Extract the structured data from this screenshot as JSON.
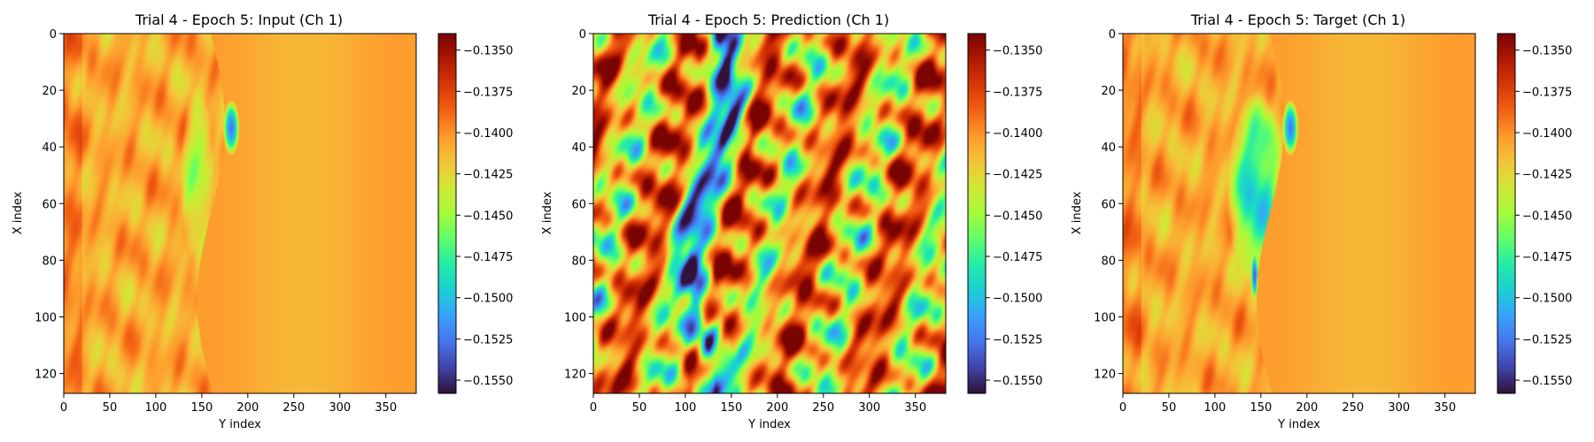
{
  "colormap": {
    "name": "turbo",
    "stops": [
      "#30123b",
      "#4145ab",
      "#4675ed",
      "#39a2fc",
      "#1bcfd4",
      "#24eca6",
      "#61fc6c",
      "#a4fc3b",
      "#d1e834",
      "#f3c63a",
      "#fe9b2d",
      "#f36315",
      "#d93806",
      "#b11901",
      "#7a0402"
    ]
  },
  "panels": [
    {
      "title": "Trial 4 - Epoch 5: Input (Ch 1)",
      "xlabel": "Y index",
      "ylabel": "X index",
      "xticks": [
        "0",
        "50",
        "100",
        "150",
        "200",
        "250",
        "300",
        "350"
      ],
      "yticks": [
        "0",
        "20",
        "40",
        "60",
        "80",
        "100",
        "120"
      ],
      "cbar_ticks": [
        "−0.1350",
        "−0.1375",
        "−0.1400",
        "−0.1425",
        "−0.1450",
        "−0.1475",
        "−0.1500",
        "−0.1525",
        "−0.1550"
      ]
    },
    {
      "title": "Trial 4 - Epoch 5: Prediction (Ch 1)",
      "xlabel": "Y index",
      "ylabel": "X index",
      "xticks": [
        "0",
        "50",
        "100",
        "150",
        "200",
        "250",
        "300",
        "350"
      ],
      "yticks": [
        "0",
        "20",
        "40",
        "60",
        "80",
        "100",
        "120"
      ],
      "cbar_ticks": [
        "−0.1350",
        "−0.1375",
        "−0.1400",
        "−0.1425",
        "−0.1450",
        "−0.1475",
        "−0.1500",
        "−0.1525",
        "−0.1550"
      ]
    },
    {
      "title": "Trial 4 - Epoch 5: Target (Ch 1)",
      "xlabel": "Y index",
      "ylabel": "X index",
      "xticks": [
        "0",
        "50",
        "100",
        "150",
        "200",
        "250",
        "300",
        "350"
      ],
      "yticks": [
        "0",
        "20",
        "40",
        "60",
        "80",
        "100",
        "120"
      ],
      "cbar_ticks": [
        "−0.1350",
        "−0.1375",
        "−0.1400",
        "−0.1425",
        "−0.1450",
        "−0.1475",
        "−0.1500",
        "−0.1525",
        "−0.1550"
      ]
    }
  ],
  "chart_data": [
    {
      "type": "heatmap",
      "title": "Trial 4 - Epoch 5: Input (Ch 1)",
      "xlabel": "Y index",
      "ylabel": "X index",
      "xlim": [
        0,
        383
      ],
      "ylim": [
        127,
        0
      ],
      "colorbar": {
        "min": -0.1558,
        "max": -0.134,
        "ticks": [
          -0.135,
          -0.1375,
          -0.14,
          -0.1425,
          -0.145,
          -0.1475,
          -0.15,
          -0.1525,
          -0.155
        ]
      },
      "field": "turbulent left region (x<200), uniform ~-0.1410 right region, low-value vortex near (y=180,x=33)"
    },
    {
      "type": "heatmap",
      "title": "Trial 4 - Epoch 5: Prediction (Ch 1)",
      "xlabel": "Y index",
      "ylabel": "X index",
      "xlim": [
        0,
        383
      ],
      "ylim": [
        127,
        0
      ],
      "colorbar": {
        "min": -0.1558,
        "max": -0.134,
        "ticks": [
          -0.135,
          -0.1375,
          -0.14,
          -0.1425,
          -0.145,
          -0.1475,
          -0.15,
          -0.1525,
          -0.155
        ]
      },
      "field": "saturated banded streaks; dark low-value channel along y~110-170"
    },
    {
      "type": "heatmap",
      "title": "Trial 4 - Epoch 5: Target (Ch 1)",
      "xlabel": "Y index",
      "ylabel": "X index",
      "xlim": [
        0,
        383
      ],
      "ylim": [
        127,
        0
      ],
      "colorbar": {
        "min": -0.1558,
        "max": -0.134,
        "ticks": [
          -0.135,
          -0.1375,
          -0.14,
          -0.1425,
          -0.145,
          -0.1475,
          -0.15,
          -0.1525,
          -0.155
        ]
      },
      "field": "blue/green bubble near y~150, vortex near (y=183,x=33), uniform ~-0.1410 right region"
    }
  ]
}
